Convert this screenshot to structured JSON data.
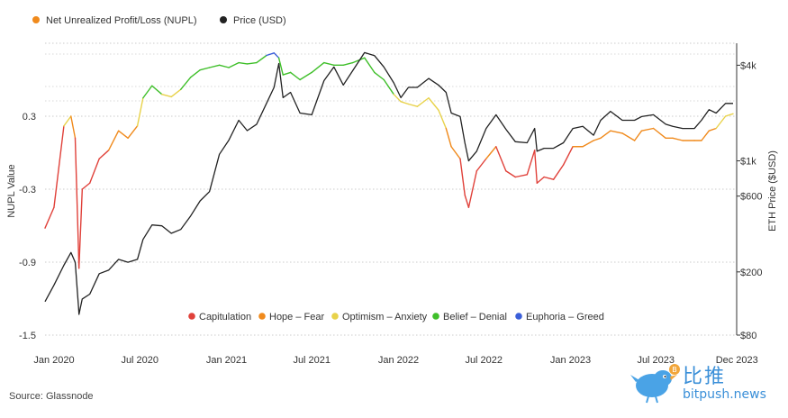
{
  "source_label": "Source: Glassnode",
  "watermark": {
    "cn": "比推",
    "en": "bitpush.news",
    "icon": "bitpush-bird-logo"
  },
  "chart_data": {
    "type": "line",
    "top_legend": [
      {
        "name": "Net Unrealized Profit/Loss (NUPL)",
        "color": "#f08a1c"
      },
      {
        "name": "Price (USD)",
        "color": "#222222"
      }
    ],
    "bottom_legend": [
      {
        "name": "Capitulation",
        "color": "#e0413a"
      },
      {
        "name": "Hope – Fear",
        "color": "#f08a1c"
      },
      {
        "name": "Optimism – Anxiety",
        "color": "#e8d24a"
      },
      {
        "name": "Belief – Denial",
        "color": "#3fbf2a"
      },
      {
        "name": "Euphoria – Greed",
        "color": "#3b5fd9"
      }
    ],
    "xlabel": "",
    "ylabel_left": "NUPL Value",
    "ylabel_right": "ETH Price ($USD)",
    "x_ticks": [
      "Jan 2020",
      "Jul 2020",
      "Jan 2021",
      "Jul 2021",
      "Jan 2022",
      "Jul 2022",
      "Jan 2023",
      "Jul 2023",
      "Dec 2023"
    ],
    "x_range": [
      "2020-01-01",
      "2023-12-31"
    ],
    "y_left_ticks": [
      "0.3",
      "-0.3",
      "-0.9",
      "-1.5"
    ],
    "y_left_range": [
      -1.5,
      0.9
    ],
    "y_right_ticks": [
      "$4k",
      "$1k",
      "$600",
      "$200",
      "$80"
    ],
    "y_right_scale": "log",
    "y_right_range": [
      80,
      5500
    ],
    "grid": "horizontal dotted",
    "series": [
      {
        "name": "Net Unrealized Profit/Loss (NUPL)",
        "axis": "left",
        "x": [
          "2020-01-01",
          "2020-01-20",
          "2020-02-10",
          "2020-02-25",
          "2020-03-05",
          "2020-03-12",
          "2020-03-13",
          "2020-03-20",
          "2020-04-05",
          "2020-04-25",
          "2020-05-15",
          "2020-06-05",
          "2020-06-25",
          "2020-07-15",
          "2020-07-27",
          "2020-08-15",
          "2020-09-05",
          "2020-09-25",
          "2020-10-15",
          "2020-11-05",
          "2020-11-25",
          "2020-12-15",
          "2021-01-05",
          "2021-01-25",
          "2021-02-15",
          "2021-03-05",
          "2021-03-25",
          "2021-04-15",
          "2021-05-01",
          "2021-05-11",
          "2021-05-20",
          "2021-06-05",
          "2021-06-25",
          "2021-07-20",
          "2021-08-15",
          "2021-09-05",
          "2021-09-25",
          "2021-10-15",
          "2021-11-09",
          "2021-11-30",
          "2021-12-20",
          "2022-01-10",
          "2022-01-25",
          "2022-02-10",
          "2022-03-01",
          "2022-03-25",
          "2022-04-15",
          "2022-05-01",
          "2022-05-12",
          "2022-05-31",
          "2022-06-10",
          "2022-06-18",
          "2022-07-05",
          "2022-07-25",
          "2022-08-15",
          "2022-09-05",
          "2022-09-25",
          "2022-10-20",
          "2022-11-05",
          "2022-11-10",
          "2022-11-25",
          "2022-12-15",
          "2023-01-05",
          "2023-01-25",
          "2023-02-15",
          "2023-03-10",
          "2023-03-25",
          "2023-04-15",
          "2023-05-10",
          "2023-06-05",
          "2023-06-20",
          "2023-07-15",
          "2023-08-10",
          "2023-08-25",
          "2023-09-15",
          "2023-10-10",
          "2023-10-25",
          "2023-11-10",
          "2023-11-25",
          "2023-12-15",
          "2023-12-31"
        ],
        "values": [
          -0.62,
          -0.45,
          0.22,
          0.3,
          0.12,
          -0.8,
          -0.95,
          -0.3,
          -0.25,
          -0.05,
          0.02,
          0.18,
          0.12,
          0.22,
          0.45,
          0.55,
          0.48,
          0.46,
          0.52,
          0.62,
          0.68,
          0.7,
          0.72,
          0.7,
          0.74,
          0.73,
          0.74,
          0.8,
          0.82,
          0.78,
          0.64,
          0.66,
          0.6,
          0.66,
          0.74,
          0.72,
          0.72,
          0.74,
          0.78,
          0.66,
          0.6,
          0.48,
          0.42,
          0.4,
          0.38,
          0.45,
          0.35,
          0.2,
          0.05,
          -0.05,
          -0.35,
          -0.45,
          -0.15,
          -0.05,
          0.05,
          -0.15,
          -0.2,
          -0.18,
          0.02,
          -0.25,
          -0.2,
          -0.22,
          -0.1,
          0.05,
          0.05,
          0.1,
          0.12,
          0.18,
          0.16,
          0.1,
          0.18,
          0.2,
          0.12,
          0.12,
          0.1,
          0.1,
          0.1,
          0.18,
          0.2,
          0.3,
          0.32
        ]
      },
      {
        "name": "Price (USD)",
        "axis": "right",
        "x": [
          "2020-01-01",
          "2020-01-20",
          "2020-02-10",
          "2020-02-25",
          "2020-03-05",
          "2020-03-12",
          "2020-03-13",
          "2020-03-20",
          "2020-04-05",
          "2020-04-25",
          "2020-05-15",
          "2020-06-05",
          "2020-06-25",
          "2020-07-15",
          "2020-07-27",
          "2020-08-15",
          "2020-09-05",
          "2020-09-25",
          "2020-10-15",
          "2020-11-05",
          "2020-11-25",
          "2020-12-15",
          "2021-01-05",
          "2021-01-25",
          "2021-02-15",
          "2021-03-05",
          "2021-03-25",
          "2021-04-15",
          "2021-05-01",
          "2021-05-11",
          "2021-05-20",
          "2021-06-05",
          "2021-06-25",
          "2021-07-20",
          "2021-08-15",
          "2021-09-05",
          "2021-09-25",
          "2021-10-15",
          "2021-11-09",
          "2021-11-30",
          "2021-12-20",
          "2022-01-10",
          "2022-01-25",
          "2022-02-10",
          "2022-03-01",
          "2022-03-25",
          "2022-04-15",
          "2022-05-01",
          "2022-05-12",
          "2022-05-31",
          "2022-06-10",
          "2022-06-18",
          "2022-07-05",
          "2022-07-25",
          "2022-08-15",
          "2022-09-05",
          "2022-09-25",
          "2022-10-20",
          "2022-11-05",
          "2022-11-10",
          "2022-11-25",
          "2022-12-15",
          "2023-01-05",
          "2023-01-25",
          "2023-02-15",
          "2023-03-10",
          "2023-03-25",
          "2023-04-15",
          "2023-05-10",
          "2023-06-05",
          "2023-06-20",
          "2023-07-15",
          "2023-08-10",
          "2023-08-25",
          "2023-09-15",
          "2023-10-10",
          "2023-10-25",
          "2023-11-10",
          "2023-11-25",
          "2023-12-15",
          "2023-12-31"
        ],
        "values": [
          130,
          165,
          220,
          265,
          230,
          120,
          108,
          135,
          145,
          195,
          205,
          240,
          230,
          240,
          320,
          395,
          390,
          350,
          370,
          450,
          560,
          640,
          1100,
          1350,
          1800,
          1550,
          1700,
          2300,
          2900,
          4100,
          2500,
          2700,
          2000,
          1950,
          3200,
          3900,
          3000,
          3700,
          4800,
          4600,
          3900,
          3100,
          2500,
          2900,
          2900,
          3300,
          3000,
          2700,
          2000,
          1900,
          1300,
          1000,
          1150,
          1600,
          1950,
          1580,
          1320,
          1300,
          1600,
          1150,
          1200,
          1200,
          1300,
          1600,
          1650,
          1450,
          1800,
          2050,
          1800,
          1800,
          1900,
          1950,
          1700,
          1650,
          1600,
          1600,
          1800,
          2100,
          2000,
          2300,
          2300
        ]
      }
    ]
  }
}
